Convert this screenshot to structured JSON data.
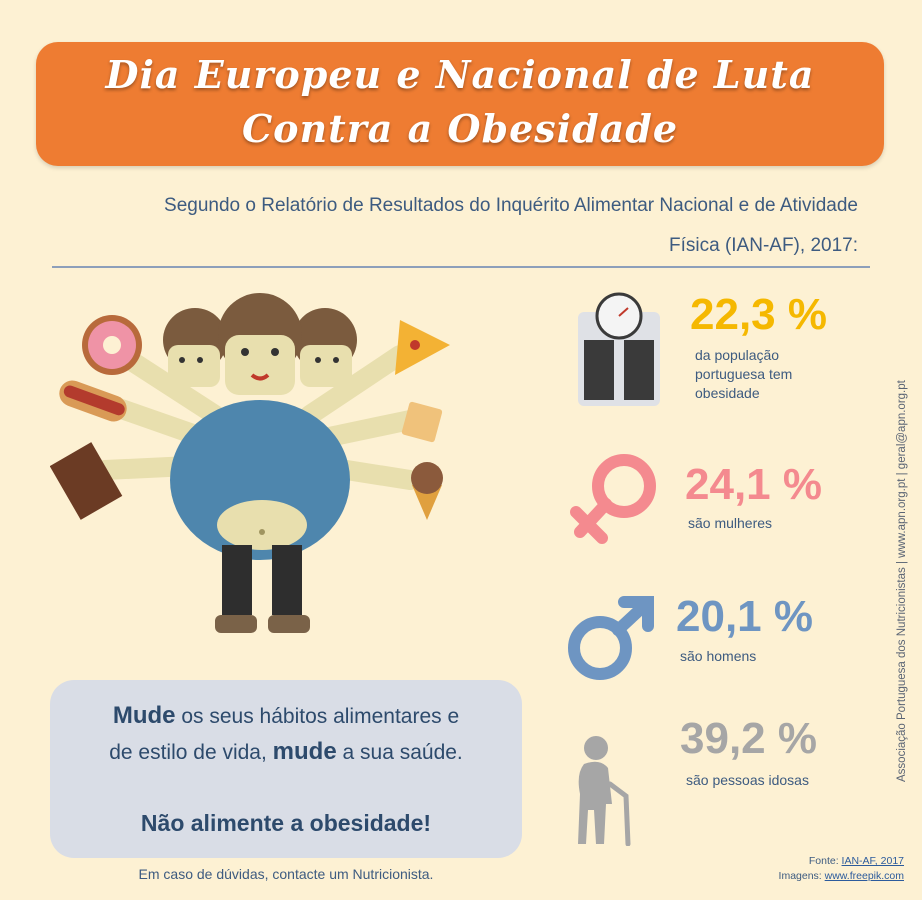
{
  "title": {
    "line1": "Dia Europeu e Nacional de Luta",
    "line2": "Contra a Obesidade"
  },
  "intro": {
    "line1": "Segundo o Relatório de  Resultados do Inquérito Alimentar Nacional e de Atividade",
    "line2": "Física (IAN-AF), 2017:"
  },
  "stats": [
    {
      "value": "22,3 %",
      "caption": [
        "da população",
        "portuguesa tem",
        "obesidade"
      ],
      "icon": "scale-icon",
      "color": "#f5b800"
    },
    {
      "value": "24,1 %",
      "caption": [
        "são mulheres"
      ],
      "icon": "female-symbol-icon",
      "color": "#f48a8f"
    },
    {
      "value": "20,1 %",
      "caption": [
        "são homens"
      ],
      "icon": "male-symbol-icon",
      "color": "#6e95c2"
    },
    {
      "value": "39,2 %",
      "caption": [
        "são pessoas idosas"
      ],
      "icon": "elderly-person-icon",
      "color": "#a6a6a6"
    }
  ],
  "message": {
    "l1_bold": "Mude",
    "l1_rest": " os seus hábitos alimentares e",
    "l2_start": "de estilo de vida, ",
    "l2_bold": "mude",
    "l2_end": " a sua saúde.",
    "l3": "Não alimente a obesidade!"
  },
  "help": "Em caso de dúvidas, contacte um Nutricionista.",
  "sources": {
    "fonte_label": "Fonte: ",
    "fonte_link": "IAN-AF, 2017",
    "imagens_label": "Imagens: ",
    "imagens_link": "www.freepik.com"
  },
  "sidebar": "Associação Portuguesa dos Nutricionistas | www.apn.org.pt | geral@apn.org.pt",
  "illustration": {
    "icon": "obese-person-with-junk-food-illustration",
    "foods": [
      "donut-icon",
      "hot-dog-icon",
      "chocolate-bar-icon",
      "pizza-slice-icon",
      "cracker-icon",
      "ice-cream-cone-icon"
    ]
  },
  "colors": {
    "background": "#fdf1d3",
    "banner": "#ee7c32",
    "text": "#3d5b80",
    "message_box": "#d9dde6"
  }
}
